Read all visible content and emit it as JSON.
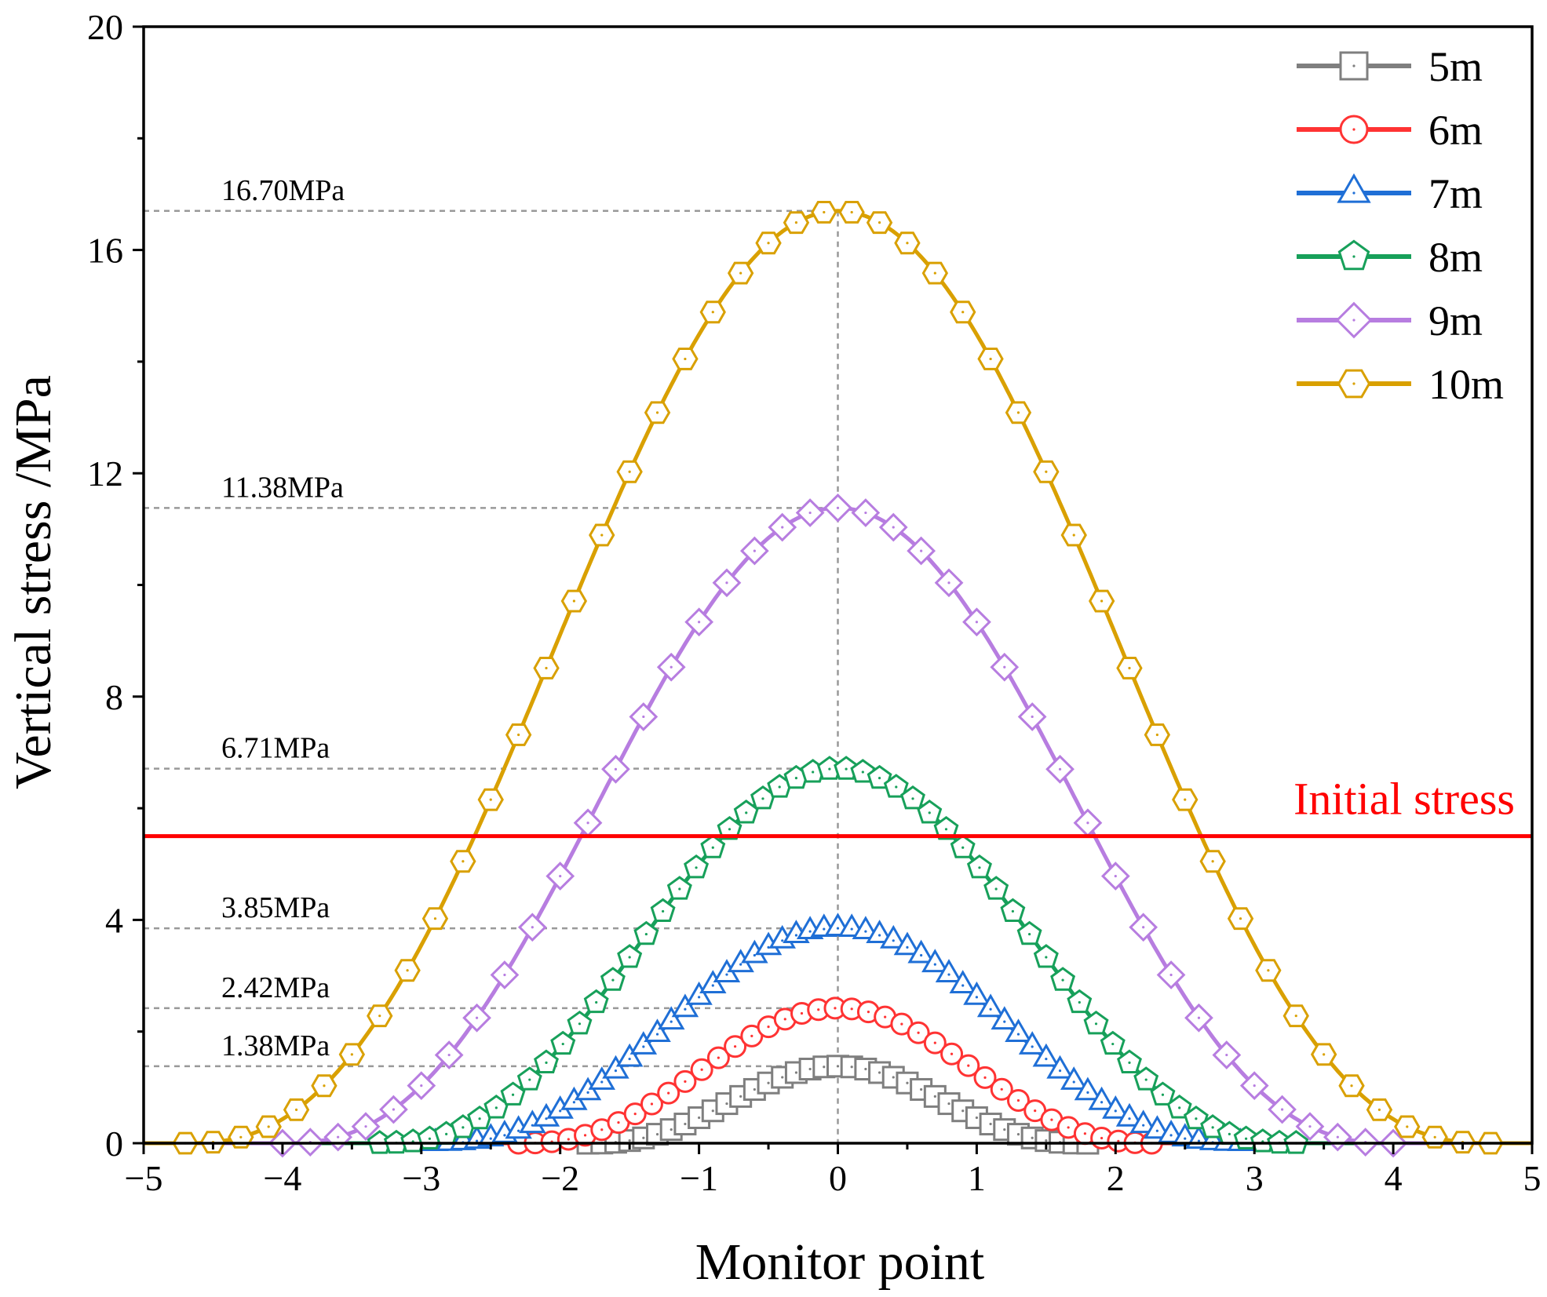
{
  "chart_data": {
    "type": "line",
    "title": "",
    "xlabel": "Monitor point",
    "ylabel": "Vertical stress /MPa",
    "xlim": [
      -5,
      5
    ],
    "ylim": [
      0,
      20
    ],
    "xticks": [
      -5,
      -4,
      -3,
      -2,
      -1,
      0,
      1,
      2,
      3,
      4,
      5
    ],
    "xtick_labels": [
      "−5",
      "−4",
      "−3",
      "−2",
      "−1",
      "0",
      "1",
      "2",
      "3",
      "4",
      "5"
    ],
    "yticks": [
      0,
      4,
      8,
      12,
      16,
      20
    ],
    "ytick_labels": [
      "0",
      "4",
      "8",
      "12",
      "16",
      "20"
    ],
    "legend_position": "top-right",
    "initial_stress": {
      "label": "Initial stress",
      "value": 5.5,
      "color": "#ff0000"
    },
    "peak_annotations": [
      {
        "label": "16.70MPa",
        "value": 16.7
      },
      {
        "label": "11.38MPa",
        "value": 11.38
      },
      {
        "label": "6.71MPa",
        "value": 6.71
      },
      {
        "label": "3.85MPa",
        "value": 3.85
      },
      {
        "label": "2.42MPa",
        "value": 2.42
      },
      {
        "label": "1.38MPa",
        "value": 1.38
      }
    ],
    "peak_x": 0,
    "series": [
      {
        "name": "5m",
        "color": "#7f7f7f",
        "marker": "square",
        "peak": 1.38,
        "half_width": 1.8,
        "spacing": 0.1
      },
      {
        "name": "6m",
        "color": "#ff3333",
        "marker": "circle",
        "peak": 2.42,
        "half_width": 2.3,
        "spacing": 0.12
      },
      {
        "name": "7m",
        "color": "#1f6fd6",
        "marker": "triangle",
        "peak": 3.85,
        "half_width": 2.9,
        "spacing": 0.1
      },
      {
        "name": "8m",
        "color": "#17a05a",
        "marker": "pentagon",
        "peak": 6.71,
        "half_width": 3.3,
        "spacing": 0.12
      },
      {
        "name": "9m",
        "color": "#b77de0",
        "marker": "diamond",
        "peak": 11.38,
        "half_width": 4.0,
        "spacing": 0.2
      },
      {
        "name": "10m",
        "color": "#d9a000",
        "marker": "hexagon",
        "peak": 16.7,
        "half_width": 4.7,
        "spacing": 0.2
      }
    ]
  }
}
